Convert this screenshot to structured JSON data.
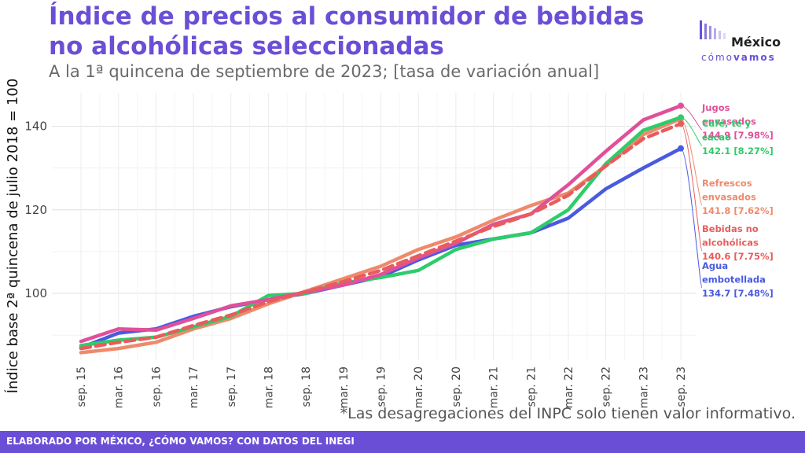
{
  "title": "Índice de precios al consumidor de bebidas no alcohólicas seleccionadas",
  "subtitle": "A la 1ª quincena de septiembre de 2023; [tasa de variación anual]",
  "logo": {
    "word": "México",
    "sub_light": "cómo",
    "sub_bold": "vamos"
  },
  "footnote": "*Las desagregaciones del INPC solo tienen valor informativo.",
  "footer": "ELABORADO POR MÉXICO, ¿CÓMO VAMOS? CON DATOS DEL INEGI",
  "chart_data": {
    "type": "line",
    "ylabel": "Índice base 2ª quincena de julio 2018 = 100",
    "xlabel": "",
    "ylim": [
      84,
      148
    ],
    "yticks": [
      100,
      120,
      140
    ],
    "grid": true,
    "legend": "direct labels at line ends (right)",
    "x": [
      "sep. 15",
      "mar. 16",
      "sep. 16",
      "mar. 17",
      "sep. 17",
      "mar. 18",
      "sep. 18",
      "mar. 19",
      "sep. 19",
      "mar. 20",
      "sep. 20",
      "mar. 21",
      "sep. 21",
      "mar. 22",
      "sep. 22",
      "mar. 23",
      "sep. 23"
    ],
    "series": [
      {
        "name": "Jugos envasados",
        "color": "#e0509a",
        "dashed": false,
        "end_label": [
          "Jugos",
          "envasados",
          "144.9 [7.98%]"
        ],
        "values": [
          88.5,
          91.5,
          91.2,
          94.0,
          97.0,
          98.5,
          100.3,
          102.0,
          104.5,
          108.5,
          112.0,
          116.5,
          119.0,
          126.0,
          134.0,
          141.5,
          144.9
        ]
      },
      {
        "name": "Café, té y cacao",
        "color": "#2ecc6a",
        "dashed": false,
        "end_label": [
          "Café, té y",
          "cacao",
          "142.1 [8.27%]"
        ],
        "values": [
          87.5,
          88.8,
          89.5,
          92.0,
          94.5,
          99.5,
          100.0,
          102.5,
          103.8,
          105.5,
          110.5,
          113.0,
          114.5,
          120.0,
          131.0,
          139.0,
          142.1
        ]
      },
      {
        "name": "Refrescos envasados",
        "color": "#ee8a6c",
        "dashed": false,
        "end_label": [
          "Refrescos",
          "envasados",
          "141.8 [7.62%]"
        ],
        "values": [
          85.8,
          86.8,
          88.3,
          91.5,
          94.0,
          97.5,
          100.5,
          103.5,
          106.5,
          110.5,
          113.5,
          117.5,
          121.0,
          124.0,
          130.5,
          138.0,
          141.8
        ]
      },
      {
        "name": "Bebidas no alcohólicas",
        "color": "#e85c5c",
        "dashed": true,
        "end_label": [
          "Bebidas no",
          "alcohólicas",
          "140.6 [7.75%]"
        ],
        "values": [
          86.8,
          88.3,
          89.5,
          92.3,
          94.8,
          98.0,
          100.4,
          102.8,
          105.5,
          109.0,
          112.5,
          116.0,
          119.0,
          123.5,
          130.5,
          137.0,
          140.6
        ]
      },
      {
        "name": "Agua embotellada",
        "color": "#4a5ae0",
        "dashed": false,
        "end_label": [
          "Agua",
          "embotellada",
          "134.7 [7.48%]"
        ],
        "values": [
          87.0,
          90.5,
          91.5,
          94.5,
          96.8,
          98.5,
          100.0,
          102.0,
          104.0,
          108.0,
          111.5,
          113.0,
          114.5,
          118.0,
          125.0,
          130.0,
          134.7
        ]
      }
    ]
  }
}
